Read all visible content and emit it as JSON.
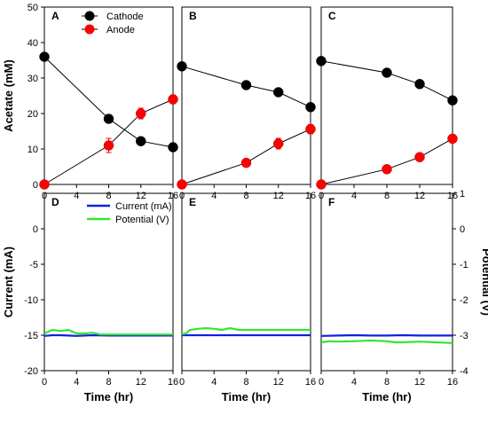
{
  "chart_data": [
    {
      "type": "line",
      "panel": "A",
      "xlim": [
        0,
        16
      ],
      "ylim": [
        0,
        50
      ],
      "xticks": [
        "0",
        "4",
        "8",
        "12",
        "16"
      ],
      "yticks": [
        "0",
        "10",
        "20",
        "30",
        "40",
        "50"
      ],
      "ylabel": "Acetate (mM)",
      "xlabel": "",
      "legend": "top-right",
      "series": [
        {
          "name": "Cathode",
          "color": "#000000",
          "x": [
            0,
            8,
            12,
            16
          ],
          "y": [
            36,
            18.5,
            12.2,
            10.5
          ],
          "err": [
            0,
            0,
            0,
            0
          ]
        },
        {
          "name": "Anode",
          "color": "#ff0000",
          "x": [
            0,
            8,
            12,
            16
          ],
          "y": [
            0,
            11,
            20,
            24
          ],
          "err": [
            0,
            2,
            1.5,
            1.2
          ]
        }
      ]
    },
    {
      "type": "line",
      "panel": "B",
      "xlim": [
        0,
        16
      ],
      "ylim": [
        0,
        50
      ],
      "xticks": [
        "0",
        "4",
        "8",
        "12",
        "16"
      ],
      "yticks": [],
      "xlabel": "",
      "series": [
        {
          "color": "#000000",
          "x": [
            0,
            8,
            12,
            16
          ],
          "y": [
            33.3,
            28,
            26,
            21.8
          ],
          "err": [
            0,
            0,
            0,
            0
          ]
        },
        {
          "color": "#ff0000",
          "x": [
            0,
            8,
            12,
            16
          ],
          "y": [
            0,
            6.1,
            11.5,
            15.6
          ],
          "err": [
            0,
            0,
            1.5,
            1.3
          ]
        }
      ]
    },
    {
      "type": "line",
      "panel": "C",
      "xlim": [
        0,
        16
      ],
      "ylim": [
        0,
        50
      ],
      "xticks": [
        "0",
        "4",
        "8",
        "12",
        "16"
      ],
      "yticks": [],
      "xlabel": "",
      "series": [
        {
          "color": "#000000",
          "x": [
            0,
            8,
            12,
            16
          ],
          "y": [
            34.8,
            31.5,
            28.3,
            23.7
          ],
          "err": [
            0,
            0,
            0,
            0
          ]
        },
        {
          "color": "#ff0000",
          "x": [
            0,
            8,
            12,
            16
          ],
          "y": [
            0,
            4.3,
            7.7,
            12.9
          ],
          "err": [
            0,
            0,
            0,
            0
          ]
        }
      ]
    },
    {
      "type": "line",
      "panel": "D",
      "xlim": [
        0,
        16
      ],
      "ylim": [
        -20,
        5
      ],
      "xticks": [
        "0",
        "4",
        "8",
        "12",
        "16"
      ],
      "yticks": [
        "0",
        "-5",
        "-10",
        "-15",
        "-20"
      ],
      "ylabel": "Current (mA)",
      "xlabel": "Time (hr)",
      "legend": "top-right",
      "series": [
        {
          "name": "Current (mA)",
          "color": "#1020e0",
          "x": [
            0,
            1,
            2,
            3,
            4,
            6,
            8,
            10,
            12,
            14,
            16
          ],
          "y": [
            -15.1,
            -15.0,
            -15.0,
            -15.05,
            -15.1,
            -15.0,
            -15.05,
            -15.05,
            -15.05,
            -15.05,
            -15.05
          ]
        },
        {
          "name": "Potential (V)",
          "color": "#33e633",
          "x": [
            0,
            1,
            2,
            3,
            4,
            5,
            6,
            7,
            8,
            10,
            12,
            14,
            16
          ],
          "y": [
            -2.95,
            -2.85,
            -2.88,
            -2.85,
            -2.95,
            -2.95,
            -2.93,
            -2.98,
            -2.98,
            -2.98,
            -2.98,
            -2.98,
            -2.98
          ]
        }
      ]
    },
    {
      "type": "line",
      "panel": "E",
      "xlim": [
        0,
        16
      ],
      "ylim": [
        -20,
        5
      ],
      "xticks": [
        "0",
        "4",
        "8",
        "12",
        "16"
      ],
      "yticks": [],
      "xlabel": "Time (hr)",
      "series": [
        {
          "color": "#1020e0",
          "x": [
            0,
            4,
            8,
            12,
            16
          ],
          "y": [
            -15.0,
            -15.0,
            -15.0,
            -15.0,
            -15.0
          ]
        },
        {
          "color": "#33e633",
          "x": [
            0,
            0.5,
            1,
            2,
            3,
            4,
            5,
            6,
            7,
            8,
            10,
            12,
            14,
            16
          ],
          "y": [
            -2.97,
            -2.95,
            -2.85,
            -2.82,
            -2.8,
            -2.82,
            -2.85,
            -2.8,
            -2.85,
            -2.85,
            -2.85,
            -2.85,
            -2.85,
            -2.85
          ]
        }
      ]
    },
    {
      "type": "line",
      "panel": "F",
      "xlim": [
        0,
        16
      ],
      "ylim": [
        -20,
        5
      ],
      "xticks": [
        "0",
        "4",
        "8",
        "12",
        "16"
      ],
      "yticks": [],
      "y2lim": [
        -4,
        1
      ],
      "y2ticks": [
        "1",
        "0",
        "-1",
        "-2",
        "-3",
        "-4"
      ],
      "y2label": "Potential (V)",
      "xlabel": "Time (hr)",
      "series": [
        {
          "color": "#1020e0",
          "x": [
            0,
            2,
            4,
            6,
            8,
            10,
            12,
            14,
            16
          ],
          "y": [
            -15.1,
            -15.05,
            -15.0,
            -15.05,
            -15.05,
            -15.0,
            -15.05,
            -15.05,
            -15.05
          ]
        },
        {
          "color": "#33e633",
          "x": [
            0,
            1,
            2,
            4,
            6,
            8,
            9,
            10,
            12,
            14,
            16
          ],
          "y": [
            -3.2,
            -3.17,
            -3.18,
            -3.17,
            -3.15,
            -3.17,
            -3.2,
            -3.2,
            -3.18,
            -3.2,
            -3.22
          ]
        }
      ]
    }
  ]
}
